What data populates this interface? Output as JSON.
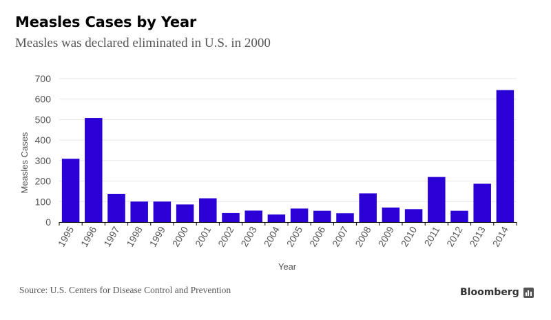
{
  "title": "Measles Cases by Year",
  "subtitle": "Measles was declared eliminated in U.S. in 2000",
  "source": "Source: U.S. Centers for Disease Control and Prevention",
  "brand": "Bloomberg",
  "brand_icon": "bloomberg-terminal-icon",
  "colors": {
    "bar": "#2b00d6",
    "grid": "#e6e6e6",
    "axis": "#000000",
    "text": "#555555"
  },
  "chart_data": {
    "type": "bar",
    "title": "Measles Cases by Year",
    "xlabel": "Year",
    "ylabel": "Measles Cases",
    "ylim": [
      0,
      700
    ],
    "yticks": [
      0,
      100,
      200,
      300,
      400,
      500,
      600,
      700
    ],
    "grid": true,
    "categories": [
      "1995",
      "1996",
      "1997",
      "1998",
      "1999",
      "2000",
      "2001",
      "2002",
      "2003",
      "2004",
      "2005",
      "2006",
      "2007",
      "2008",
      "2009",
      "2010",
      "2011",
      "2012",
      "2013",
      "2014"
    ],
    "values": [
      309,
      508,
      138,
      100,
      100,
      86,
      116,
      44,
      56,
      37,
      66,
      55,
      43,
      140,
      71,
      63,
      220,
      55,
      187,
      644
    ]
  }
}
